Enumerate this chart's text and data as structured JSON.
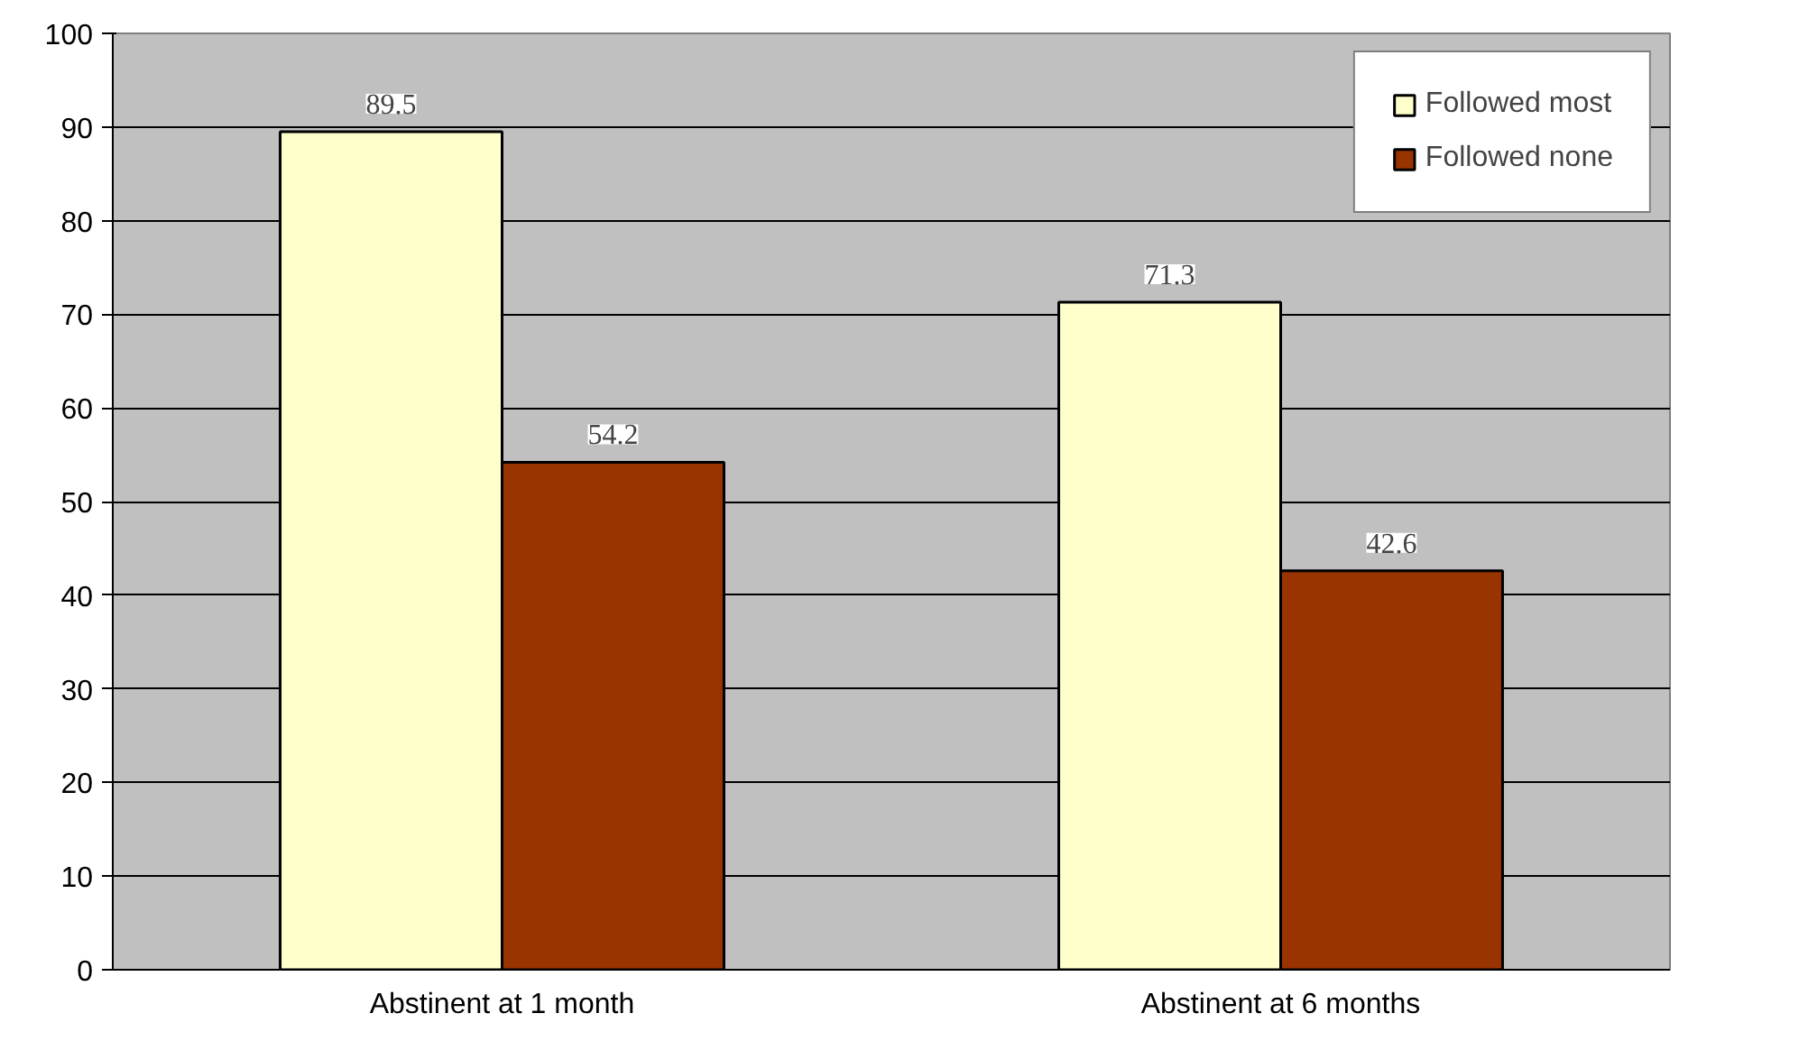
{
  "chart_data": {
    "type": "bar",
    "categories": [
      "Abstinent at 1 month",
      "Abstinent at 6 months"
    ],
    "series": [
      {
        "name": "Followed most",
        "color": "#ffffcc",
        "values": [
          89.5,
          71.3
        ]
      },
      {
        "name": "Followed none",
        "color": "#993300",
        "values": [
          54.2,
          42.6
        ]
      }
    ],
    "ylim": [
      0,
      100
    ],
    "yticks": [
      0,
      10,
      20,
      30,
      40,
      50,
      60,
      70,
      80,
      90,
      100
    ],
    "grid": "y",
    "legend": "top right",
    "data_labels": true
  }
}
